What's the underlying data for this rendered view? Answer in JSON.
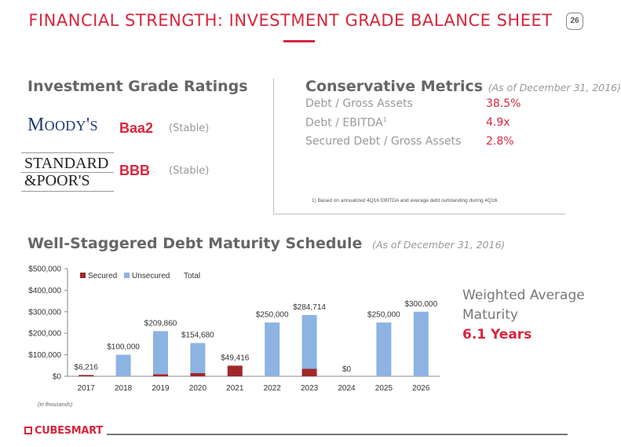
{
  "page": {
    "title": "FINANCIAL STRENGTH: INVESTMENT GRADE BALANCE SHEET",
    "number": "26"
  },
  "ratings": {
    "heading": "Investment Grade Ratings",
    "items": [
      {
        "agency": "MOODY'S",
        "rating": "Baa2",
        "outlook": "(Stable)"
      },
      {
        "agency_line1": "STANDARD",
        "agency_line2": "&POOR'S",
        "rating": "BBB",
        "outlook": "(Stable)"
      }
    ]
  },
  "metrics": {
    "heading": "Conservative Metrics",
    "as_of": "(As of December 31, 2016)",
    "items": [
      {
        "label": "Debt / Gross Assets",
        "sup": "",
        "value": "38.5%"
      },
      {
        "label": "Debt / EBITDA",
        "sup": "1",
        "value": "4.9x"
      },
      {
        "label": "Secured Debt / Gross Assets",
        "sup": "",
        "value": "2.8%"
      }
    ],
    "footnote": "1) Based on annualized 4Q16 EBITDA and average debt outstanding during 4Q16."
  },
  "maturity": {
    "heading": "Well-Staggered Debt Maturity Schedule",
    "as_of": "(As of December 31, 2016)",
    "units_note": "(in thousands)",
    "wam_line1": "Weighted Average",
    "wam_line2": "Maturity",
    "wam_value": "6.1 Years"
  },
  "chart_data": {
    "type": "bar",
    "stacked": true,
    "categories": [
      "2017",
      "2018",
      "2019",
      "2020",
      "2021",
      "2022",
      "2023",
      "2024",
      "2025",
      "2026"
    ],
    "series": [
      {
        "name": "Secured",
        "color": "#a0282b",
        "values": [
          6216,
          0,
          9860,
          14680,
          49416,
          0,
          34714,
          0,
          0,
          0
        ]
      },
      {
        "name": "Unsecured",
        "color": "#8db3e2",
        "values": [
          0,
          100000,
          200000,
          140000,
          0,
          250000,
          250000,
          0,
          250000,
          300000
        ]
      }
    ],
    "totals_legend": "Total",
    "total_labels": [
      "$6,216",
      "$100,000",
      "$209,860",
      "$154,680",
      "$49,416",
      "$250,000",
      "$284,714",
      "$0",
      "$250,000",
      "$300,000"
    ],
    "y_ticks": [
      "$0",
      "$100,000",
      "$200,000",
      "$300,000",
      "$400,000",
      "$500,000"
    ],
    "ylim": [
      0,
      500000
    ],
    "legend_position": "top-left"
  },
  "footer": {
    "brand": "CUBESMART"
  },
  "colors": {
    "accent": "#d7263d",
    "moodys_blue": "#1b3a7a"
  }
}
